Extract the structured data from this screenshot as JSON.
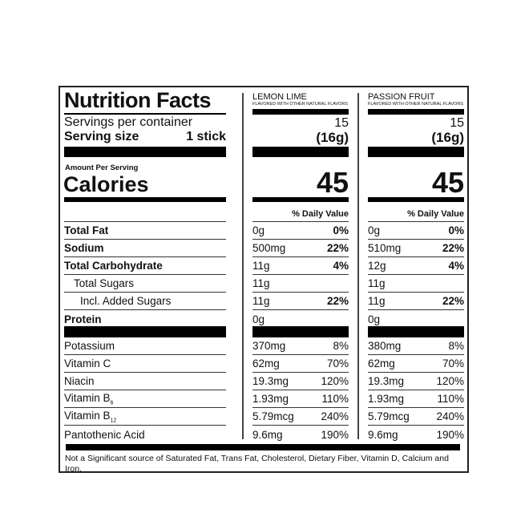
{
  "title": "Nutrition Facts",
  "servings_label": "Servings per container",
  "serving_size_label": "Serving size",
  "serving_size_value": "1 stick",
  "amount_per_serving": "Amount Per Serving",
  "calories_label": "Calories",
  "daily_value_header": "% Daily Value",
  "nutrients": [
    {
      "label": "Total Fat",
      "bold": true
    },
    {
      "label": "Sodium",
      "bold": true
    },
    {
      "label": "Total Carbohydrate",
      "bold": true
    },
    {
      "label": "Total Sugars",
      "bold": false
    },
    {
      "label": "Incl. Added Sugars",
      "bold": false
    },
    {
      "label": "Protein",
      "bold": true
    }
  ],
  "vitamins": [
    {
      "label": "Potassium"
    },
    {
      "label": "Vitamin C"
    },
    {
      "label": "Niacin"
    },
    {
      "label": "Vitamin B",
      "sub": "6"
    },
    {
      "label": "Vitamin B",
      "sub": "12"
    },
    {
      "label": "Pantothenic Acid"
    }
  ],
  "flavors": [
    {
      "name": "LEMON LIME",
      "note": "FLAVORED WITH OTHER NATURAL FLAVORS",
      "servings": "15",
      "serving_size": "(16g)",
      "calories": "45",
      "nutrients": [
        [
          "0g",
          "0%"
        ],
        [
          "500mg",
          "22%"
        ],
        [
          "11g",
          "4%"
        ],
        [
          "11g",
          ""
        ],
        [
          "11g",
          "22%"
        ],
        [
          "0g",
          ""
        ]
      ],
      "vitamins": [
        [
          "370mg",
          "8%"
        ],
        [
          "62mg",
          "70%"
        ],
        [
          "19.3mg",
          "120%"
        ],
        [
          "1.93mg",
          "110%"
        ],
        [
          "5.79mcg",
          "240%"
        ],
        [
          "9.6mg",
          "190%"
        ]
      ]
    },
    {
      "name": "PASSION FRUIT",
      "note": "FLAVORED WITH OTHER NATURAL FLAVORS",
      "servings": "15",
      "serving_size": "(16g)",
      "calories": "45",
      "nutrients": [
        [
          "0g",
          "0%"
        ],
        [
          "510mg",
          "22%"
        ],
        [
          "12g",
          "4%"
        ],
        [
          "11g",
          ""
        ],
        [
          "11g",
          "22%"
        ],
        [
          "0g",
          ""
        ]
      ],
      "vitamins": [
        [
          "380mg",
          "8%"
        ],
        [
          "62mg",
          "70%"
        ],
        [
          "19.3mg",
          "120%"
        ],
        [
          "1.93mg",
          "110%"
        ],
        [
          "5.79mcg",
          "240%"
        ],
        [
          "9.6mg",
          "190%"
        ]
      ]
    }
  ],
  "footnote": "Not a Significant source of Saturated Fat, Trans Fat, Cholesterol, Dietary Fiber, Vitamin D, Calcium and Iron."
}
